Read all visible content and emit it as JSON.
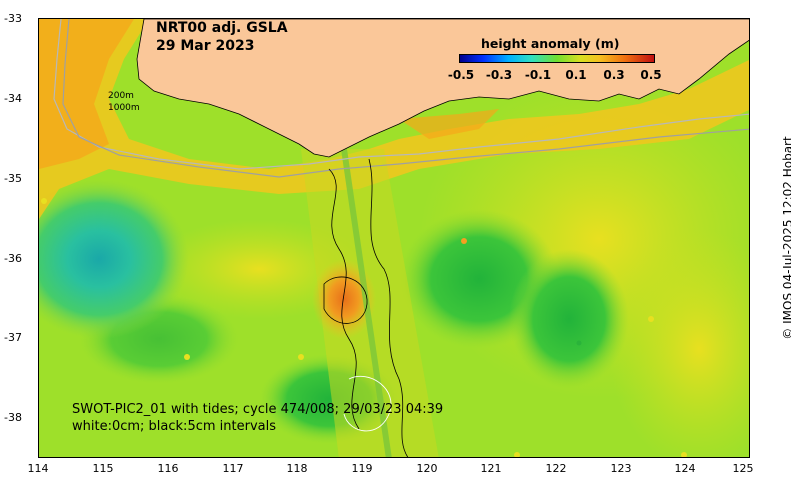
{
  "title": {
    "line1": "NRT00 adj. GSLA",
    "line2": "29 Mar 2023"
  },
  "legend": {
    "title": "height anomaly (m)",
    "ticks": [
      "-0.5",
      "-0.3",
      "-0.1",
      "0.1",
      "0.3",
      "0.5"
    ]
  },
  "axes": {
    "lat_ticks": [
      "-33",
      "-34",
      "-35",
      "-36",
      "-37",
      "-38"
    ],
    "lon_ticks": [
      "114",
      "115",
      "116",
      "117",
      "118",
      "119",
      "120",
      "121",
      "122",
      "123",
      "124",
      "125"
    ]
  },
  "contours": {
    "label_200": "200m",
    "label_1000": "1000m"
  },
  "swot": {
    "line1": "SWOT-PIC2_01 with tides; cycle 474/008; 29/03/23 04:39",
    "line2": "white:0cm; black:5cm intervals"
  },
  "credit": "© IMOS 04-Jul-2025 12:02 Hobart",
  "colors": {
    "land": "#fac799",
    "ocean_base": "#9ee02a",
    "shelf_orange": "#f5b21b",
    "eddy_cyan": "#29c0a0",
    "strong_green": "#35c23b"
  }
}
